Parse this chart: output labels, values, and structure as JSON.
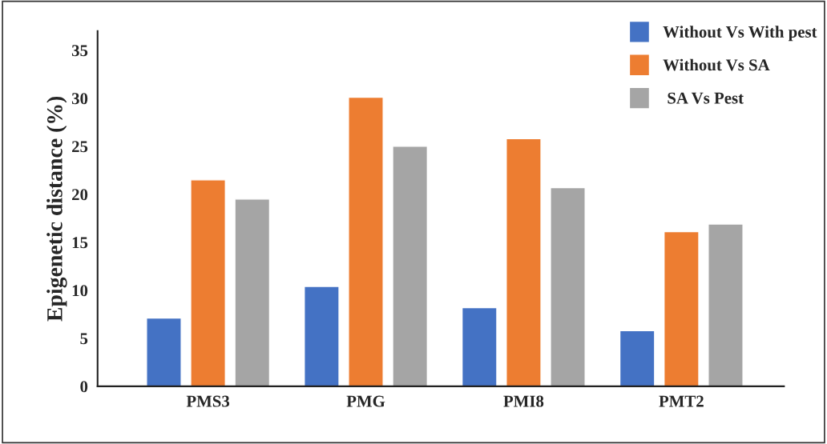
{
  "chart_data": {
    "type": "bar",
    "ylabel": "Epigenetic distance (%)",
    "categories": [
      "PMS3",
      "PMG",
      "PMI8",
      "PMT2"
    ],
    "series": [
      {
        "name": "Without Vs With pest",
        "color": "#4472c4",
        "values": [
          7.1,
          10.4,
          8.2,
          5.8
        ]
      },
      {
        "name": "Without Vs SA",
        "color": "#ed7d31",
        "values": [
          21.5,
          30.1,
          25.8,
          16.1
        ]
      },
      {
        "name": " SA Vs Pest",
        "color": "#a5a5a5",
        "values": [
          19.5,
          25.0,
          20.7,
          16.9
        ]
      }
    ],
    "ylim": [
      0,
      37
    ],
    "yticks": [
      0,
      5,
      10,
      15,
      20,
      25,
      30,
      35
    ],
    "grid": false,
    "legend": "top right"
  }
}
